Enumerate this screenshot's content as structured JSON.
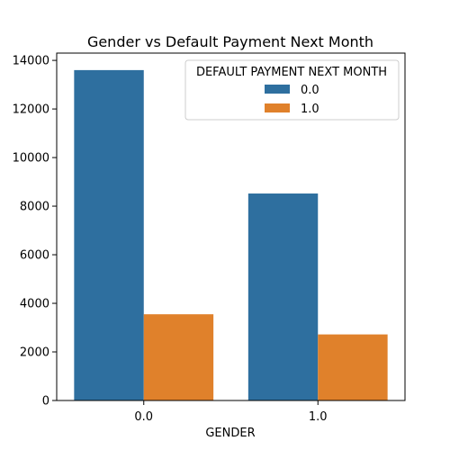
{
  "chart_data": {
    "type": "bar",
    "title": "Gender vs Default Payment Next Month",
    "xlabel": "GENDER",
    "ylabel": "",
    "categories": [
      "0.0",
      "1.0"
    ],
    "series": [
      {
        "name": "0.0",
        "values": [
          13600,
          8520
        ],
        "color": "#2e6f9f"
      },
      {
        "name": "1.0",
        "values": [
          3550,
          2720
        ],
        "color": "#e0812b"
      }
    ],
    "ylim": [
      0,
      14300
    ],
    "yticks": [
      0,
      2000,
      4000,
      6000,
      8000,
      10000,
      12000,
      14000
    ],
    "ytick_labels": [
      "0",
      "2000",
      "4000",
      "6000",
      "8000",
      "10000",
      "12000",
      "14000"
    ],
    "grid": false,
    "legend": {
      "title": "DEFAULT PAYMENT NEXT MONTH",
      "placement": "top-right"
    }
  }
}
